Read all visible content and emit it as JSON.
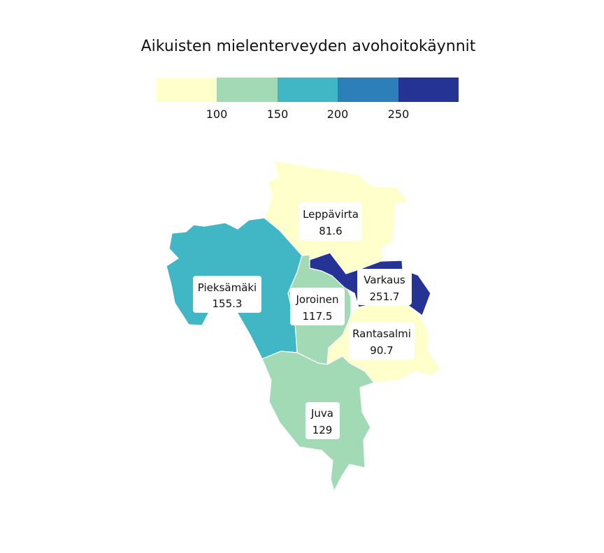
{
  "chart_data": {
    "type": "choropleth",
    "title": "Aikuisten mielenterveyden avohoitokäynnit",
    "legend": {
      "breaks": [
        100,
        150,
        200,
        250
      ],
      "tick_labels": [
        "100",
        "150",
        "200",
        "250"
      ],
      "colors": [
        "#ffffcc",
        "#a1dab4",
        "#41b6c4",
        "#2c7fb8",
        "#253494"
      ]
    },
    "regions": [
      {
        "name": "Leppävirta",
        "value": 81.6,
        "value_label": "81.6"
      },
      {
        "name": "Pieksämäki",
        "value": 155.3,
        "value_label": "155.3"
      },
      {
        "name": "Joroinen",
        "value": 117.5,
        "value_label": "117.5"
      },
      {
        "name": "Varkaus",
        "value": 251.7,
        "value_label": "251.7"
      },
      {
        "name": "Rantasalmi",
        "value": 90.7,
        "value_label": "90.7"
      },
      {
        "name": "Juva",
        "value": 129,
        "value_label": "129"
      }
    ]
  }
}
